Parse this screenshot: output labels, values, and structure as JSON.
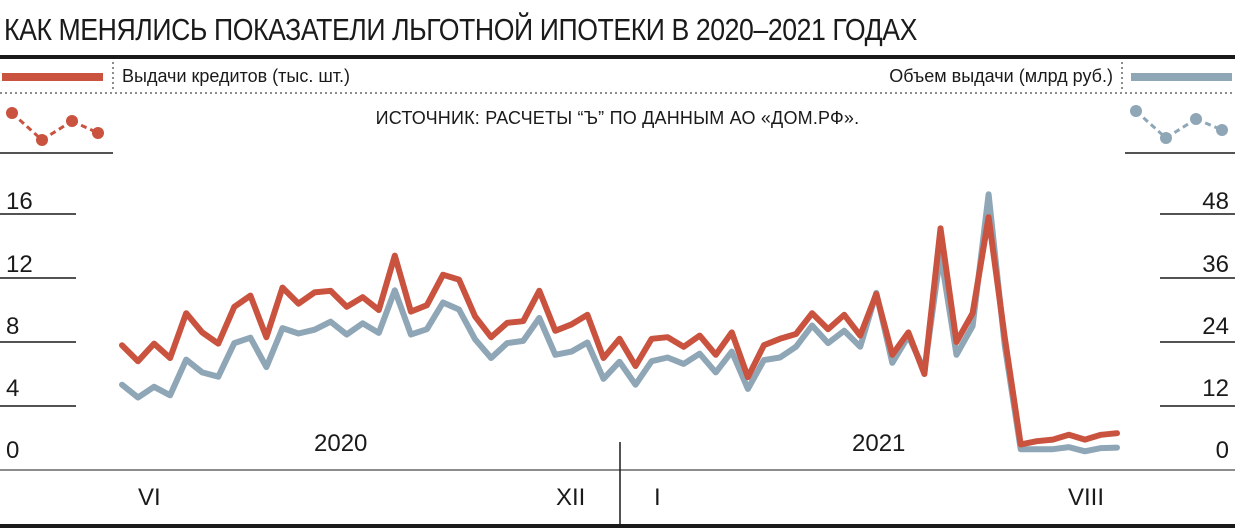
{
  "title": "КАК МЕНЯЛИСЬ ПОКАЗАТЕЛИ ЛЬГОТНОЙ ИПОТЕКИ В 2020–2021 ГОДАХ",
  "legend": {
    "left": "Выдачи кредитов (тыс. шт.)",
    "right": "Объем выдачи (млрд руб.)"
  },
  "source": "ИСТОЧНИК: РАСЧЕТЫ “Ъ” ПО ДАННЫМ АО «ДОМ.РФ».",
  "colors": {
    "loans": "#c9533f",
    "volume": "#8ea6b6",
    "axis": "#1a1a1a"
  },
  "chart_data": {
    "type": "line",
    "x_labels": {
      "years": [
        "2020",
        "2021"
      ],
      "months": [
        "VI",
        "XII",
        "I",
        "VIII"
      ]
    },
    "left_axis": {
      "ticks": [
        "0",
        "4",
        "8",
        "12",
        "16"
      ],
      "ylim": [
        0,
        16
      ]
    },
    "right_axis": {
      "ticks": [
        "0",
        "12",
        "24",
        "36",
        "48"
      ],
      "ylim": [
        0,
        48
      ]
    },
    "series": [
      {
        "name": "Выдачи кредитов (тыс. шт.)",
        "axis": "left",
        "values": [
          7.8,
          6.8,
          7.9,
          7.0,
          9.8,
          8.6,
          7.9,
          10.2,
          10.9,
          8.3,
          11.4,
          10.4,
          11.1,
          11.2,
          10.2,
          10.8,
          10.0,
          13.4,
          9.9,
          10.3,
          12.2,
          11.9,
          9.6,
          8.3,
          9.2,
          9.3,
          11.2,
          8.7,
          9.1,
          9.7,
          7.0,
          8.2,
          6.5,
          8.2,
          8.3,
          7.7,
          8.4,
          7.2,
          8.6,
          5.8,
          7.8,
          8.2,
          8.5,
          9.8,
          8.8,
          9.7,
          8.4,
          11.0,
          7.2,
          8.6,
          6.0,
          15.1,
          8.0,
          9.8,
          15.8,
          8.3,
          1.6,
          1.8,
          1.9,
          2.2,
          1.9,
          2.2,
          2.3
        ]
      },
      {
        "name": "Объем выдачи (млрд руб.)",
        "axis": "right",
        "values": [
          16.0,
          13.6,
          15.6,
          14.0,
          20.7,
          18.3,
          17.5,
          23.8,
          24.8,
          19.3,
          26.6,
          25.6,
          26.3,
          27.8,
          25.4,
          27.5,
          25.7,
          33.7,
          25.4,
          26.4,
          31.4,
          30.1,
          24.5,
          21.0,
          23.8,
          24.2,
          28.5,
          21.6,
          22.2,
          23.9,
          17.1,
          20.3,
          16.0,
          20.4,
          21.1,
          19.9,
          21.8,
          18.3,
          22.2,
          15.2,
          20.6,
          21.1,
          23.1,
          27.1,
          23.8,
          26.1,
          23.1,
          33.2,
          20.1,
          25.1,
          18.7,
          40.6,
          21.6,
          27.0,
          51.7,
          23.4,
          3.9,
          3.9,
          3.9,
          4.3,
          3.5,
          4.1,
          4.2
        ]
      }
    ]
  }
}
